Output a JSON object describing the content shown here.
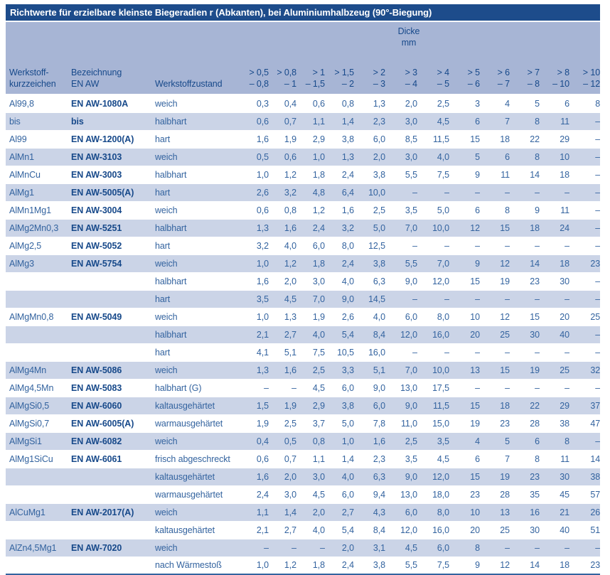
{
  "title": "Richtwerte für erzielbare kleinste Biegeradien r (Abkanten), bei Aluminiumhalbzeug (90°-Biegung)",
  "colors": {
    "title_bar_bg": "#1d4c8b",
    "header_bg": "#a7b5d5",
    "stripe_bg": "#cbd4e7",
    "text_dark": "#17498a",
    "text_mid": "#33639f"
  },
  "header": {
    "group_label_line1": "Dicke",
    "group_label_line2": "mm",
    "col1_line1": "Werkstoff-",
    "col1_line2": "kurzzeichen",
    "col2_line1": "Bezeichnung",
    "col2_line2": "EN AW",
    "col3": "Werkstoffzustand",
    "thickness_cols": [
      {
        "gt": "> 0,5",
        "range": "– 0,8"
      },
      {
        "gt": "> 0,8",
        "range": "– 1"
      },
      {
        "gt": "> 1",
        "range": "– 1,5"
      },
      {
        "gt": "> 1,5",
        "range": "– 2"
      },
      {
        "gt": "> 2",
        "range": "– 3"
      },
      {
        "gt": "> 3",
        "range": "– 4"
      },
      {
        "gt": "> 4",
        "range": "– 5"
      },
      {
        "gt": "> 5",
        "range": "– 6"
      },
      {
        "gt": "> 6",
        "range": "– 7"
      },
      {
        "gt": "> 7",
        "range": "– 8"
      },
      {
        "gt": "> 8",
        "range": "– 10"
      },
      {
        "gt": "> 10",
        "range": "– 12"
      }
    ]
  },
  "rows": [
    {
      "kurzzeichen": "Al99,8",
      "bezeichnung": "EN AW-1080A",
      "zustand": "weich",
      "values": [
        "0,3",
        "0,4",
        "0,6",
        "0,8",
        "1,3",
        "2,0",
        "2,5",
        "3",
        "4",
        "5",
        "6",
        "8"
      ]
    },
    {
      "kurzzeichen": "bis",
      "bezeichnung": "bis",
      "zustand": "halbhart",
      "values": [
        "0,6",
        "0,7",
        "1,1",
        "1,4",
        "2,3",
        "3,0",
        "4,5",
        "6",
        "7",
        "8",
        "11",
        "–"
      ]
    },
    {
      "kurzzeichen": "Al99",
      "bezeichnung": "EN AW-1200(A)",
      "zustand": "hart",
      "values": [
        "1,6",
        "1,9",
        "2,9",
        "3,8",
        "6,0",
        "8,5",
        "11,5",
        "15",
        "18",
        "22",
        "29",
        "–"
      ]
    },
    {
      "kurzzeichen": "AlMn1",
      "bezeichnung": "EN AW-3103",
      "zustand": "weich",
      "values": [
        "0,5",
        "0,6",
        "1,0",
        "1,3",
        "2,0",
        "3,0",
        "4,0",
        "5",
        "6",
        "8",
        "10",
        "–"
      ]
    },
    {
      "kurzzeichen": "AlMnCu",
      "bezeichnung": "EN AW-3003",
      "zustand": "halbhart",
      "values": [
        "1,0",
        "1,2",
        "1,8",
        "2,4",
        "3,8",
        "5,5",
        "7,5",
        "9",
        "11",
        "14",
        "18",
        "–"
      ]
    },
    {
      "kurzzeichen": "AlMg1",
      "bezeichnung": "EN AW-5005(A)",
      "zustand": "hart",
      "values": [
        "2,6",
        "3,2",
        "4,8",
        "6,4",
        "10,0",
        "–",
        "–",
        "–",
        "–",
        "–",
        "–",
        "–"
      ]
    },
    {
      "kurzzeichen": "AlMn1Mg1",
      "bezeichnung": "EN AW-3004",
      "zustand": "weich",
      "values": [
        "0,6",
        "0,8",
        "1,2",
        "1,6",
        "2,5",
        "3,5",
        "5,0",
        "6",
        "8",
        "9",
        "11",
        "–"
      ]
    },
    {
      "kurzzeichen": "AlMg2Mn0,3",
      "bezeichnung": "EN AW-5251",
      "zustand": "halbhart",
      "values": [
        "1,3",
        "1,6",
        "2,4",
        "3,2",
        "5,0",
        "7,0",
        "10,0",
        "12",
        "15",
        "18",
        "24",
        "–"
      ]
    },
    {
      "kurzzeichen": "AlMg2,5",
      "bezeichnung": "EN AW-5052",
      "zustand": "hart",
      "values": [
        "3,2",
        "4,0",
        "6,0",
        "8,0",
        "12,5",
        "–",
        "–",
        "–",
        "–",
        "–",
        "–",
        "–"
      ]
    },
    {
      "kurzzeichen": "AlMg3",
      "bezeichnung": "EN AW-5754",
      "zustand": "weich",
      "values": [
        "1,0",
        "1,2",
        "1,8",
        "2,4",
        "3,8",
        "5,5",
        "7,0",
        "9",
        "12",
        "14",
        "18",
        "23"
      ]
    },
    {
      "kurzzeichen": "",
      "bezeichnung": "",
      "zustand": "halbhart",
      "values": [
        "1,6",
        "2,0",
        "3,0",
        "4,0",
        "6,3",
        "9,0",
        "12,0",
        "15",
        "19",
        "23",
        "30",
        "–"
      ]
    },
    {
      "kurzzeichen": "",
      "bezeichnung": "",
      "zustand": "hart",
      "values": [
        "3,5",
        "4,5",
        "7,0",
        "9,0",
        "14,5",
        "–",
        "–",
        "–",
        "–",
        "–",
        "–",
        "–"
      ]
    },
    {
      "kurzzeichen": "AlMgMn0,8",
      "bezeichnung": "EN AW-5049",
      "zustand": "weich",
      "values": [
        "1,0",
        "1,3",
        "1,9",
        "2,6",
        "4,0",
        "6,0",
        "8,0",
        "10",
        "12",
        "15",
        "20",
        "25"
      ]
    },
    {
      "kurzzeichen": "",
      "bezeichnung": "",
      "zustand": "halbhart",
      "values": [
        "2,1",
        "2,7",
        "4,0",
        "5,4",
        "8,4",
        "12,0",
        "16,0",
        "20",
        "25",
        "30",
        "40",
        "–"
      ]
    },
    {
      "kurzzeichen": "",
      "bezeichnung": "",
      "zustand": "hart",
      "values": [
        "4,1",
        "5,1",
        "7,5",
        "10,5",
        "16,0",
        "–",
        "–",
        "–",
        "–",
        "–",
        "–",
        "–"
      ]
    },
    {
      "kurzzeichen": "AlMg4Mn",
      "bezeichnung": "EN AW-5086",
      "zustand": "weich",
      "values": [
        "1,3",
        "1,6",
        "2,5",
        "3,3",
        "5,1",
        "7,0",
        "10,0",
        "13",
        "15",
        "19",
        "25",
        "32"
      ]
    },
    {
      "kurzzeichen": "AlMg4,5Mn",
      "bezeichnung": "EN AW-5083",
      "zustand": "halbhart (G)",
      "values": [
        "–",
        "–",
        "4,5",
        "6,0",
        "9,0",
        "13,0",
        "17,5",
        "–",
        "–",
        "–",
        "–",
        "–"
      ]
    },
    {
      "kurzzeichen": "AlMgSi0,5",
      "bezeichnung": "EN AW-6060",
      "zustand": "kaltausgehärtet",
      "values": [
        "1,5",
        "1,9",
        "2,9",
        "3,8",
        "6,0",
        "9,0",
        "11,5",
        "15",
        "18",
        "22",
        "29",
        "37"
      ]
    },
    {
      "kurzzeichen": "AlMgSi0,7",
      "bezeichnung": "EN AW-6005(A)",
      "zustand": "warmausgehärtet",
      "values": [
        "1,9",
        "2,5",
        "3,7",
        "5,0",
        "7,8",
        "11,0",
        "15,0",
        "19",
        "23",
        "28",
        "38",
        "47"
      ]
    },
    {
      "kurzzeichen": "AlMgSi1",
      "bezeichnung": "EN AW-6082",
      "zustand": "weich",
      "values": [
        "0,4",
        "0,5",
        "0,8",
        "1,0",
        "1,6",
        "2,5",
        "3,5",
        "4",
        "5",
        "6",
        "8",
        "–"
      ]
    },
    {
      "kurzzeichen": "AlMg1SiCu",
      "bezeichnung": "EN AW-6061",
      "zustand": "frisch abgeschreckt",
      "values": [
        "0,6",
        "0,7",
        "1,1",
        "1,4",
        "2,3",
        "3,5",
        "4,5",
        "6",
        "7",
        "8",
        "11",
        "14"
      ]
    },
    {
      "kurzzeichen": "",
      "bezeichnung": "",
      "zustand": "kaltausgehärtet",
      "values": [
        "1,6",
        "2,0",
        "3,0",
        "4,0",
        "6,3",
        "9,0",
        "12,0",
        "15",
        "19",
        "23",
        "30",
        "38"
      ]
    },
    {
      "kurzzeichen": "",
      "bezeichnung": "",
      "zustand": "warmausgehärtet",
      "values": [
        "2,4",
        "3,0",
        "4,5",
        "6,0",
        "9,4",
        "13,0",
        "18,0",
        "23",
        "28",
        "35",
        "45",
        "57"
      ]
    },
    {
      "kurzzeichen": "AlCuMg1",
      "bezeichnung": "EN AW-2017(A)",
      "zustand": "weich",
      "values": [
        "1,1",
        "1,4",
        "2,0",
        "2,7",
        "4,3",
        "6,0",
        "8,0",
        "10",
        "13",
        "16",
        "21",
        "26"
      ]
    },
    {
      "kurzzeichen": "",
      "bezeichnung": "",
      "zustand": "kaltausgehärtet",
      "values": [
        "2,1",
        "2,7",
        "4,0",
        "5,4",
        "8,4",
        "12,0",
        "16,0",
        "20",
        "25",
        "30",
        "40",
        "51"
      ]
    },
    {
      "kurzzeichen": "AlZn4,5Mg1",
      "bezeichnung": "EN AW-7020",
      "zustand": "weich",
      "values": [
        "–",
        "–",
        "–",
        "2,0",
        "3,1",
        "4,5",
        "6,0",
        "8",
        "–",
        "–",
        "–",
        "–"
      ]
    },
    {
      "kurzzeichen": "",
      "bezeichnung": "",
      "zustand": "nach Wärmestoß",
      "values": [
        "1,0",
        "1,2",
        "1,8",
        "2,4",
        "3,8",
        "5,5",
        "7,5",
        "9",
        "12",
        "14",
        "18",
        "23"
      ]
    }
  ]
}
